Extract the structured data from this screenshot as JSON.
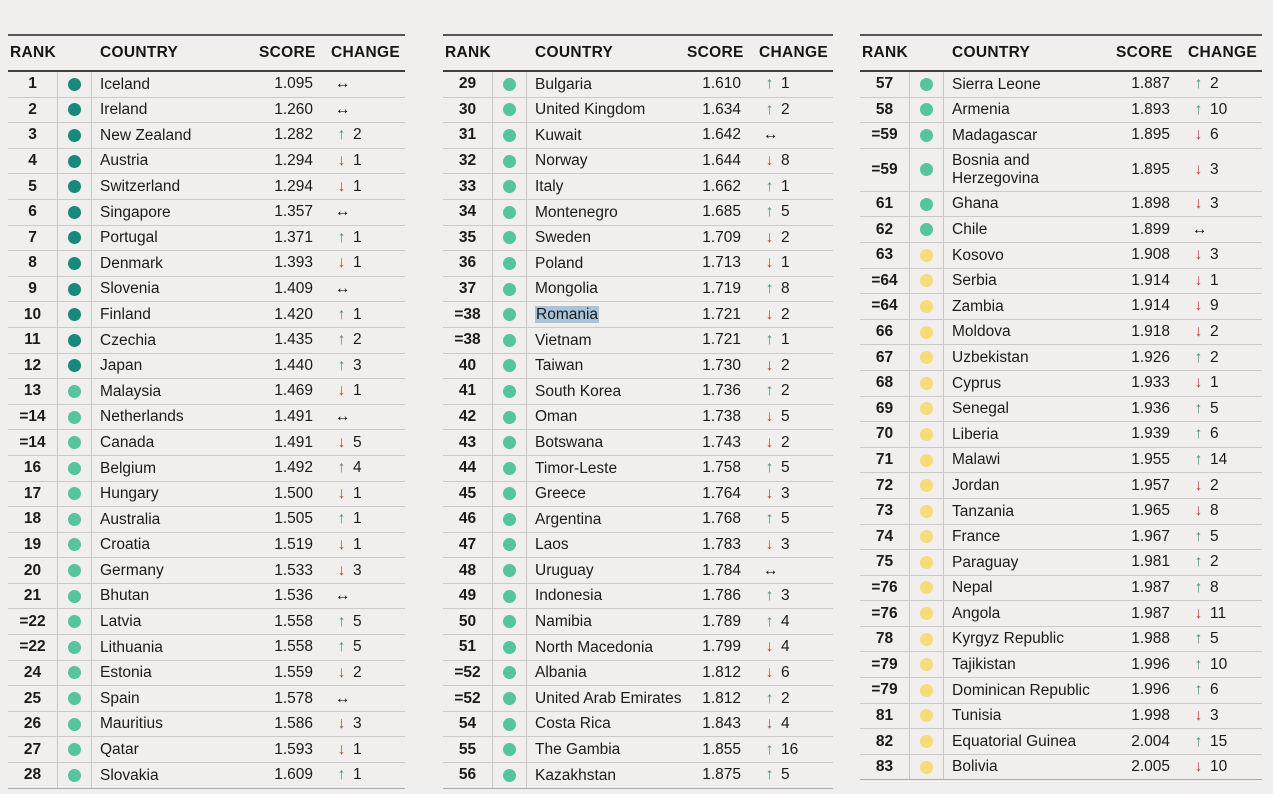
{
  "header": {
    "rank": "RANK",
    "country": "COUNTRY",
    "score": "SCORE",
    "change": "CHANGE"
  },
  "colors": {
    "page_bg": "#f0efee",
    "tier_very_high": "#17897f",
    "tier_high": "#55c49f",
    "tier_medium": "#f6db7b",
    "change_up": "#458e7a",
    "change_down": "#bc3c2e",
    "change_same": "#141414",
    "selection_highlight": "#a9c4d9"
  },
  "icons": {
    "up": "↑",
    "down": "↓",
    "same": "↔",
    "tier_dot": "peace-tier-dot"
  },
  "tables": [
    {
      "rows": [
        {
          "rank": "1",
          "country": "Iceland",
          "score": "1.095",
          "dir": "same",
          "delta": "",
          "tier": "vh"
        },
        {
          "rank": "2",
          "country": "Ireland",
          "score": "1.260",
          "dir": "same",
          "delta": "",
          "tier": "vh"
        },
        {
          "rank": "3",
          "country": "New Zealand",
          "score": "1.282",
          "dir": "up",
          "delta": "2",
          "tier": "vh"
        },
        {
          "rank": "4",
          "country": "Austria",
          "score": "1.294",
          "dir": "down",
          "delta": "1",
          "tier": "vh"
        },
        {
          "rank": "5",
          "country": "Switzerland",
          "score": "1.294",
          "dir": "down",
          "delta": "1",
          "tier": "vh"
        },
        {
          "rank": "6",
          "country": "Singapore",
          "score": "1.357",
          "dir": "same",
          "delta": "",
          "tier": "vh"
        },
        {
          "rank": "7",
          "country": "Portugal",
          "score": "1.371",
          "dir": "up",
          "delta": "1",
          "tier": "vh"
        },
        {
          "rank": "8",
          "country": "Denmark",
          "score": "1.393",
          "dir": "down",
          "delta": "1",
          "tier": "vh"
        },
        {
          "rank": "9",
          "country": "Slovenia",
          "score": "1.409",
          "dir": "same",
          "delta": "",
          "tier": "vh"
        },
        {
          "rank": "10",
          "country": "Finland",
          "score": "1.420",
          "dir": "up",
          "delta": "1",
          "tier": "vh"
        },
        {
          "rank": "11",
          "country": "Czechia",
          "score": "1.435",
          "dir": "up",
          "delta": "2",
          "tier": "vh"
        },
        {
          "rank": "12",
          "country": "Japan",
          "score": "1.440",
          "dir": "up",
          "delta": "3",
          "tier": "vh"
        },
        {
          "rank": "13",
          "country": "Malaysia",
          "score": "1.469",
          "dir": "down",
          "delta": "1",
          "tier": "h"
        },
        {
          "rank": "=14",
          "country": "Netherlands",
          "score": "1.491",
          "dir": "same",
          "delta": "",
          "tier": "h"
        },
        {
          "rank": "=14",
          "country": "Canada",
          "score": "1.491",
          "dir": "down",
          "delta": "5",
          "tier": "h"
        },
        {
          "rank": "16",
          "country": "Belgium",
          "score": "1.492",
          "dir": "up",
          "delta": "4",
          "tier": "h"
        },
        {
          "rank": "17",
          "country": "Hungary",
          "score": "1.500",
          "dir": "down",
          "delta": "1",
          "tier": "h"
        },
        {
          "rank": "18",
          "country": "Australia",
          "score": "1.505",
          "dir": "up",
          "delta": "1",
          "tier": "h"
        },
        {
          "rank": "19",
          "country": "Croatia",
          "score": "1.519",
          "dir": "down",
          "delta": "1",
          "tier": "h"
        },
        {
          "rank": "20",
          "country": "Germany",
          "score": "1.533",
          "dir": "down",
          "delta": "3",
          "tier": "h"
        },
        {
          "rank": "21",
          "country": "Bhutan",
          "score": "1.536",
          "dir": "same",
          "delta": "",
          "tier": "h"
        },
        {
          "rank": "=22",
          "country": "Latvia",
          "score": "1.558",
          "dir": "up",
          "delta": "5",
          "tier": "h"
        },
        {
          "rank": "=22",
          "country": "Lithuania",
          "score": "1.558",
          "dir": "up",
          "delta": "5",
          "tier": "h"
        },
        {
          "rank": "24",
          "country": "Estonia",
          "score": "1.559",
          "dir": "down",
          "delta": "2",
          "tier": "h"
        },
        {
          "rank": "25",
          "country": "Spain",
          "score": "1.578",
          "dir": "same",
          "delta": "",
          "tier": "h"
        },
        {
          "rank": "26",
          "country": "Mauritius",
          "score": "1.586",
          "dir": "down",
          "delta": "3",
          "tier": "h"
        },
        {
          "rank": "27",
          "country": "Qatar",
          "score": "1.593",
          "dir": "down",
          "delta": "1",
          "tier": "h"
        },
        {
          "rank": "28",
          "country": "Slovakia",
          "score": "1.609",
          "dir": "up",
          "delta": "1",
          "tier": "h"
        }
      ]
    },
    {
      "rows": [
        {
          "rank": "29",
          "country": "Bulgaria",
          "score": "1.610",
          "dir": "up",
          "delta": "1",
          "tier": "h"
        },
        {
          "rank": "30",
          "country": "United Kingdom",
          "score": "1.634",
          "dir": "up",
          "delta": "2",
          "tier": "h"
        },
        {
          "rank": "31",
          "country": "Kuwait",
          "score": "1.642",
          "dir": "same",
          "delta": "",
          "tier": "h"
        },
        {
          "rank": "32",
          "country": "Norway",
          "score": "1.644",
          "dir": "down",
          "delta": "8",
          "tier": "h"
        },
        {
          "rank": "33",
          "country": "Italy",
          "score": "1.662",
          "dir": "up",
          "delta": "1",
          "tier": "h"
        },
        {
          "rank": "34",
          "country": "Montenegro",
          "score": "1.685",
          "dir": "up",
          "delta": "5",
          "tier": "h"
        },
        {
          "rank": "35",
          "country": "Sweden",
          "score": "1.709",
          "dir": "down",
          "delta": "2",
          "tier": "h"
        },
        {
          "rank": "36",
          "country": "Poland",
          "score": "1.713",
          "dir": "down",
          "delta": "1",
          "tier": "h"
        },
        {
          "rank": "37",
          "country": "Mongolia",
          "score": "1.719",
          "dir": "up",
          "delta": "8",
          "tier": "h"
        },
        {
          "rank": "=38",
          "country": "Romania",
          "score": "1.721",
          "dir": "down",
          "delta": "2",
          "tier": "h",
          "highlight": true
        },
        {
          "rank": "=38",
          "country": "Vietnam",
          "score": "1.721",
          "dir": "up",
          "delta": "1",
          "tier": "h"
        },
        {
          "rank": "40",
          "country": "Taiwan",
          "score": "1.730",
          "dir": "down",
          "delta": "2",
          "tier": "h"
        },
        {
          "rank": "41",
          "country": "South Korea",
          "score": "1.736",
          "dir": "up",
          "delta": "2",
          "tier": "h"
        },
        {
          "rank": "42",
          "country": "Oman",
          "score": "1.738",
          "dir": "down",
          "delta": "5",
          "tier": "h"
        },
        {
          "rank": "43",
          "country": "Botswana",
          "score": "1.743",
          "dir": "down",
          "delta": "2",
          "tier": "h"
        },
        {
          "rank": "44",
          "country": "Timor-Leste",
          "score": "1.758",
          "dir": "up",
          "delta": "5",
          "tier": "h"
        },
        {
          "rank": "45",
          "country": "Greece",
          "score": "1.764",
          "dir": "down",
          "delta": "3",
          "tier": "h"
        },
        {
          "rank": "46",
          "country": "Argentina",
          "score": "1.768",
          "dir": "up",
          "delta": "5",
          "tier": "h"
        },
        {
          "rank": "47",
          "country": "Laos",
          "score": "1.783",
          "dir": "down",
          "delta": "3",
          "tier": "h"
        },
        {
          "rank": "48",
          "country": "Uruguay",
          "score": "1.784",
          "dir": "same",
          "delta": "",
          "tier": "h"
        },
        {
          "rank": "49",
          "country": "Indonesia",
          "score": "1.786",
          "dir": "up",
          "delta": "3",
          "tier": "h"
        },
        {
          "rank": "50",
          "country": "Namibia",
          "score": "1.789",
          "dir": "up",
          "delta": "4",
          "tier": "h"
        },
        {
          "rank": "51",
          "country": "North Macedonia",
          "score": "1.799",
          "dir": "down",
          "delta": "4",
          "tier": "h"
        },
        {
          "rank": "=52",
          "country": "Albania",
          "score": "1.812",
          "dir": "down",
          "delta": "6",
          "tier": "h"
        },
        {
          "rank": "=52",
          "country": "United Arab Emirates",
          "score": "1.812",
          "dir": "up",
          "delta": "2",
          "tier": "h"
        },
        {
          "rank": "54",
          "country": "Costa Rica",
          "score": "1.843",
          "dir": "down",
          "delta": "4",
          "tier": "h"
        },
        {
          "rank": "55",
          "country": "The Gambia",
          "score": "1.855",
          "dir": "up",
          "delta": "16",
          "tier": "h"
        },
        {
          "rank": "56",
          "country": "Kazakhstan",
          "score": "1.875",
          "dir": "up",
          "delta": "5",
          "tier": "h"
        }
      ]
    },
    {
      "rows": [
        {
          "rank": "57",
          "country": "Sierra Leone",
          "score": "1.887",
          "dir": "up",
          "delta": "2",
          "tier": "h"
        },
        {
          "rank": "58",
          "country": "Armenia",
          "score": "1.893",
          "dir": "up",
          "delta": "10",
          "tier": "h"
        },
        {
          "rank": "=59",
          "country": "Madagascar",
          "score": "1.895",
          "dir": "down",
          "delta": "6",
          "tier": "h"
        },
        {
          "rank": "=59",
          "country": "Bosnia and\nHerzegovina",
          "score": "1.895",
          "dir": "down",
          "delta": "3",
          "tier": "h",
          "tall": true
        },
        {
          "rank": "61",
          "country": "Ghana",
          "score": "1.898",
          "dir": "down",
          "delta": "3",
          "tier": "h"
        },
        {
          "rank": "62",
          "country": "Chile",
          "score": "1.899",
          "dir": "same",
          "delta": "",
          "tier": "h"
        },
        {
          "rank": "63",
          "country": "Kosovo",
          "score": "1.908",
          "dir": "down",
          "delta": "3",
          "tier": "m"
        },
        {
          "rank": "=64",
          "country": "Serbia",
          "score": "1.914",
          "dir": "down",
          "delta": "1",
          "tier": "m"
        },
        {
          "rank": "=64",
          "country": "Zambia",
          "score": "1.914",
          "dir": "down",
          "delta": "9",
          "tier": "m"
        },
        {
          "rank": "66",
          "country": "Moldova",
          "score": "1.918",
          "dir": "down",
          "delta": "2",
          "tier": "m"
        },
        {
          "rank": "67",
          "country": "Uzbekistan",
          "score": "1.926",
          "dir": "up",
          "delta": "2",
          "tier": "m"
        },
        {
          "rank": "68",
          "country": "Cyprus",
          "score": "1.933",
          "dir": "down",
          "delta": "1",
          "tier": "m"
        },
        {
          "rank": "69",
          "country": "Senegal",
          "score": "1.936",
          "dir": "up",
          "delta": "5",
          "tier": "m"
        },
        {
          "rank": "70",
          "country": "Liberia",
          "score": "1.939",
          "dir": "up",
          "delta": "6",
          "tier": "m"
        },
        {
          "rank": "71",
          "country": "Malawi",
          "score": "1.955",
          "dir": "up",
          "delta": "14",
          "tier": "m"
        },
        {
          "rank": "72",
          "country": "Jordan",
          "score": "1.957",
          "dir": "down",
          "delta": "2",
          "tier": "m"
        },
        {
          "rank": "73",
          "country": "Tanzania",
          "score": "1.965",
          "dir": "down",
          "delta": "8",
          "tier": "m"
        },
        {
          "rank": "74",
          "country": "France",
          "score": "1.967",
          "dir": "up",
          "delta": "5",
          "tier": "m"
        },
        {
          "rank": "75",
          "country": "Paraguay",
          "score": "1.981",
          "dir": "up",
          "delta": "2",
          "tier": "m"
        },
        {
          "rank": "=76",
          "country": "Nepal",
          "score": "1.987",
          "dir": "up",
          "delta": "8",
          "tier": "m"
        },
        {
          "rank": "=76",
          "country": "Angola",
          "score": "1.987",
          "dir": "down",
          "delta": "11",
          "tier": "m"
        },
        {
          "rank": "78",
          "country": "Kyrgyz Republic",
          "score": "1.988",
          "dir": "up",
          "delta": "5",
          "tier": "m"
        },
        {
          "rank": "=79",
          "country": "Tajikistan",
          "score": "1.996",
          "dir": "up",
          "delta": "10",
          "tier": "m"
        },
        {
          "rank": "=79",
          "country": "Dominican Republic",
          "score": "1.996",
          "dir": "up",
          "delta": "6",
          "tier": "m"
        },
        {
          "rank": "81",
          "country": "Tunisia",
          "score": "1.998",
          "dir": "down",
          "delta": "3",
          "tier": "m"
        },
        {
          "rank": "82",
          "country": "Equatorial Guinea",
          "score": "2.004",
          "dir": "up",
          "delta": "15",
          "tier": "m"
        },
        {
          "rank": "83",
          "country": "Bolivia",
          "score": "2.005",
          "dir": "down",
          "delta": "10",
          "tier": "m"
        }
      ]
    }
  ]
}
